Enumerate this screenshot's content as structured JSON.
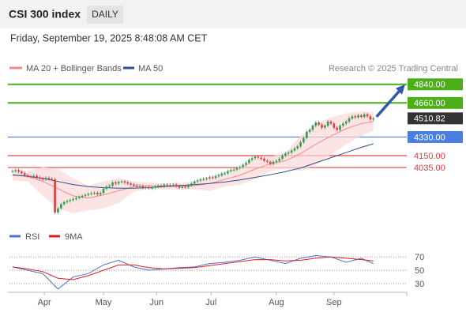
{
  "header": {
    "title": "CSI 300 index",
    "period": "DAILY",
    "date": "Friday, September 19, 2025 8:48:08 AM CET"
  },
  "chart_data": {
    "type": "candlestick",
    "legend": [
      "MA 20 + Bollinger Bands",
      "MA 50"
    ],
    "legend_colors": [
      "#f28b8b",
      "#2f4f8f"
    ],
    "credit": "Research © 2025 Trading Central",
    "close": [
      4000,
      4010,
      3995,
      3980,
      3960,
      3950,
      3945,
      3955,
      3940,
      3930,
      3920,
      3935,
      3925,
      3920,
      3600,
      3640,
      3680,
      3700,
      3710,
      3720,
      3730,
      3740,
      3750,
      3760,
      3770,
      3780,
      3785,
      3790,
      3775,
      3790,
      3830,
      3850,
      3860,
      3890,
      3880,
      3895,
      3900,
      3890,
      3880,
      3870,
      3860,
      3850,
      3855,
      3840,
      3845,
      3835,
      3840,
      3850,
      3860,
      3855,
      3870,
      3860,
      3865,
      3870,
      3855,
      3840,
      3850,
      3845,
      3860,
      3880,
      3900,
      3910,
      3920,
      3925,
      3930,
      3940,
      3935,
      3950,
      3960,
      3975,
      3980,
      4000,
      4010,
      4015,
      4030,
      4040,
      4060,
      4080,
      4110,
      4125,
      4140,
      4130,
      4120,
      4100,
      4090,
      4070,
      4090,
      4100,
      4120,
      4150,
      4170,
      4180,
      4200,
      4220,
      4240,
      4280,
      4320,
      4380,
      4400,
      4440,
      4470,
      4450,
      4420,
      4440,
      4480,
      4460,
      4420,
      4400,
      4440,
      4460,
      4480,
      4510,
      4530,
      4520,
      4540,
      4525,
      4550,
      4530,
      4500,
      4510.82
    ],
    "up_color": "#2e9e4f",
    "down_color": "#e03a3a",
    "ind_x": [
      0,
      5,
      10,
      15,
      20,
      25,
      30,
      35,
      40,
      45,
      50,
      55,
      60,
      65,
      70,
      75,
      80,
      85,
      90,
      95,
      100,
      105,
      110,
      115,
      119
    ],
    "ma20": [
      3960,
      3950,
      3900,
      3830,
      3760,
      3740,
      3770,
      3810,
      3850,
      3860,
      3850,
      3855,
      3860,
      3880,
      3920,
      3960,
      4020,
      4070,
      4100,
      4170,
      4260,
      4340,
      4410,
      4460,
      4480
    ],
    "bb_upper": [
      4010,
      4000,
      4040,
      4020,
      3930,
      3860,
      3900,
      3930,
      3900,
      3890,
      3880,
      3885,
      3900,
      3950,
      3990,
      4050,
      4120,
      4140,
      4180,
      4340,
      4460,
      4520,
      4560,
      4580,
      4570
    ],
    "bb_lower": [
      3910,
      3900,
      3760,
      3640,
      3590,
      3620,
      3640,
      3690,
      3800,
      3830,
      3820,
      3825,
      3820,
      3810,
      3850,
      3870,
      3920,
      4000,
      4020,
      4000,
      4060,
      4160,
      4260,
      4340,
      4390
    ],
    "ma50": [
      3965,
      3950,
      3930,
      3900,
      3870,
      3850,
      3840,
      3835,
      3835,
      3840,
      3850,
      3860,
      3870,
      3880,
      3895,
      3915,
      3940,
      3965,
      3995,
      4030,
      4080,
      4130,
      4180,
      4230,
      4265
    ],
    "ylim": [
      3500,
      4930
    ],
    "xlim": [
      -1,
      130
    ],
    "xticks": [
      {
        "value": 10.5,
        "label": "Apr"
      },
      {
        "value": 30,
        "label": "May"
      },
      {
        "value": 47.5,
        "label": "Jun"
      },
      {
        "value": 65.5,
        "label": "Jul"
      },
      {
        "value": 87,
        "label": "Aug"
      },
      {
        "value": 106,
        "label": "Sep"
      }
    ],
    "levels": [
      {
        "value": 4840,
        "label": "4840.00"
      },
      {
        "value": 4660,
        "label": "4660.00"
      },
      4510.82,
      {
        "value": 4330,
        "label": "4330.00"
      },
      {
        "value": 4150,
        "label": "4150.00"
      },
      {
        "value": 4035,
        "label": "4035.00"
      }
    ],
    "level_styles": [
      "green",
      "green",
      "current",
      "blue",
      "red",
      "red"
    ],
    "rsi_legend": [
      "RSI",
      "9MA"
    ],
    "rsi_colors": [
      "#4d6fd6",
      "#d92020"
    ],
    "rsi": [
      55,
      50,
      45,
      22,
      40,
      45,
      58,
      65,
      55,
      50,
      52,
      54,
      55,
      60,
      62,
      65,
      70,
      65,
      60,
      68,
      72,
      70,
      62,
      68,
      60
    ],
    "rsi_ma": [
      55,
      52,
      48,
      38,
      36,
      42,
      50,
      58,
      58,
      54,
      52,
      53,
      54,
      57,
      60,
      63,
      66,
      66,
      64,
      65,
      68,
      70,
      68,
      66,
      64
    ],
    "rsi_ylim": [
      17,
      88
    ],
    "rsi_yticks": [
      70,
      50,
      30
    ]
  }
}
